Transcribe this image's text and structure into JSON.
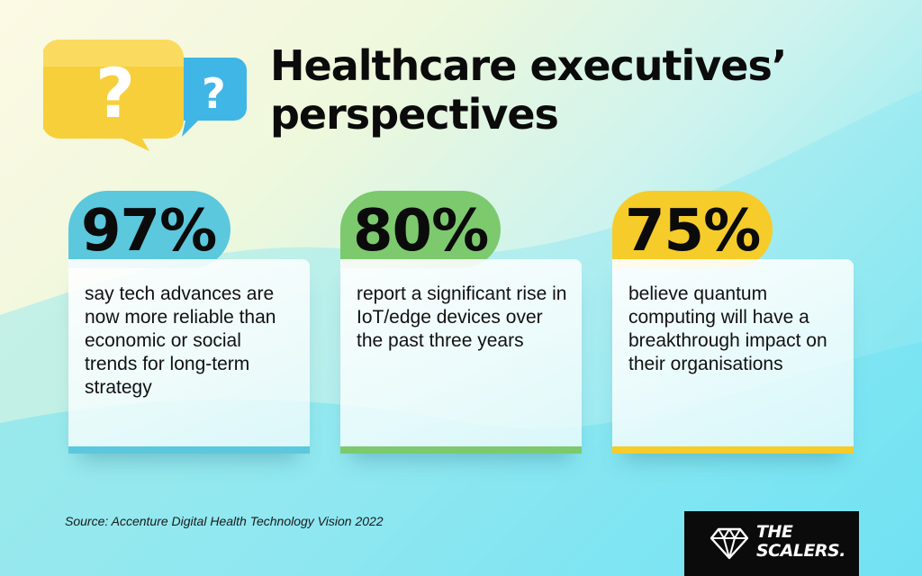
{
  "title": {
    "line1": "Healthcare executives’",
    "line2": "perspectives"
  },
  "icons": {
    "bubble_left": "question-speech-bubble-yellow",
    "bubble_right": "question-speech-bubble-blue"
  },
  "stats": [
    {
      "percent": "97%",
      "description": "say tech advances are now more reliable than economic or social trends for long-term strategy",
      "color": "#5bc8dd"
    },
    {
      "percent": "80%",
      "description": "report a significant rise in IoT/edge devices over the past three years",
      "color": "#7dc96e"
    },
    {
      "percent": "75%",
      "description": "believe quantum computing will have a breakthrough impact on their organisations",
      "color": "#f5cc2a"
    }
  ],
  "source": "Source: Accenture Digital Health Technology Vision 2022",
  "logo": {
    "line1": "THE",
    "line2": "SCALERS."
  }
}
